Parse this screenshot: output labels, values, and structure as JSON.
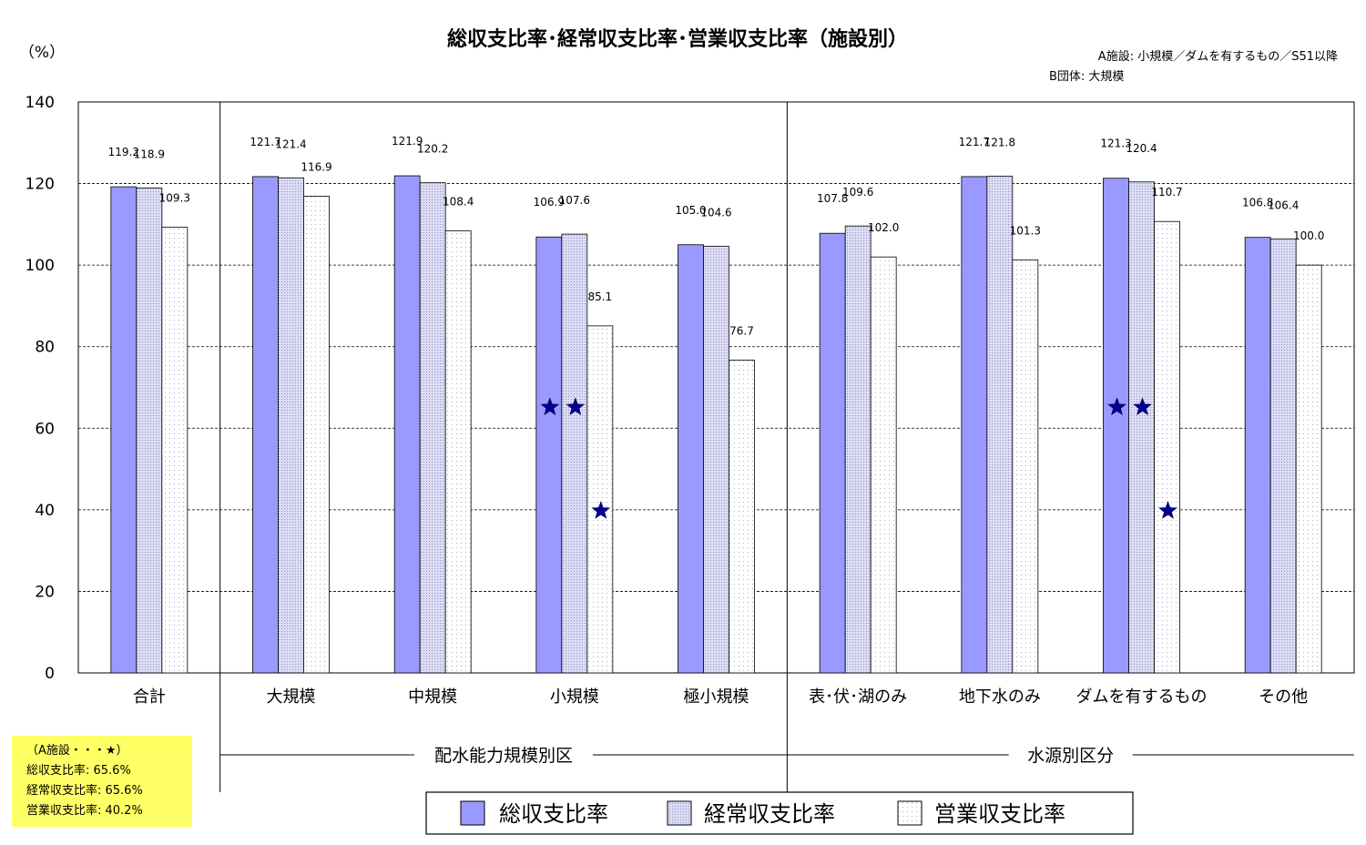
{
  "chart_data": {
    "type": "bar",
    "title": "総収支比率･経常収支比率･営業収支比率（施設別）",
    "ylabel": "（%）",
    "ylim": [
      0,
      140
    ],
    "yticks": [
      "0",
      "20",
      "40",
      "60",
      "80",
      "100",
      "120",
      "140"
    ],
    "categories": [
      "合計",
      "大規模",
      "中規模",
      "小規模",
      "極小規模",
      "表･伏･湖のみ",
      "地下水のみ",
      "ダムを有するもの",
      "その他"
    ],
    "series": [
      {
        "name": "総収支比率",
        "values": [
          119.2,
          121.7,
          121.9,
          106.9,
          105.0,
          107.8,
          121.7,
          121.3,
          106.8
        ],
        "labels": [
          "119.2",
          "121.7",
          "121.9",
          "106.9",
          "105.0",
          "107.8",
          "121.7",
          "121.3",
          "106.8"
        ]
      },
      {
        "name": "経常収支比率",
        "values": [
          118.9,
          121.4,
          120.2,
          107.6,
          104.6,
          109.6,
          121.8,
          120.4,
          106.4
        ],
        "labels": [
          "118.9",
          "121.4",
          "120.2",
          "107.6",
          "104.6",
          "109.6",
          "121.8",
          "120.4",
          "106.4"
        ]
      },
      {
        "name": "営業収支比率",
        "values": [
          109.3,
          116.9,
          108.4,
          85.1,
          76.7,
          102.0,
          101.3,
          110.7,
          100.0
        ],
        "labels": [
          "109.3",
          "116.9",
          "108.4",
          "85.1",
          "76.7",
          "102.0",
          "101.3",
          "110.7",
          "100.0"
        ]
      }
    ],
    "star_markers": {
      "category_indices": [
        3,
        7
      ],
      "values": [
        65.6,
        65.6,
        40.2
      ]
    },
    "groups": [
      {
        "label": "配水能力規模別区",
        "from": 1,
        "to": 4
      },
      {
        "label": "水源別区分",
        "from": 5,
        "to": 8
      }
    ],
    "grid": true,
    "legend_position": "bottom-center",
    "notes": [
      "A施設: 小規模／ダムを有するもの／S51以降",
      "B団体: 大規模"
    ],
    "colors": {
      "series1": "#9999ff",
      "series2": "#ccccee",
      "series3": "#ffffff",
      "star": "#000099",
      "note_bg": "#ffff66"
    }
  },
  "note_box": {
    "lines": [
      "（A施設・・・★）",
      "総収支比率: 65.6%",
      "経常収支比率: 65.6%",
      "営業収支比率: 40.2%"
    ]
  }
}
